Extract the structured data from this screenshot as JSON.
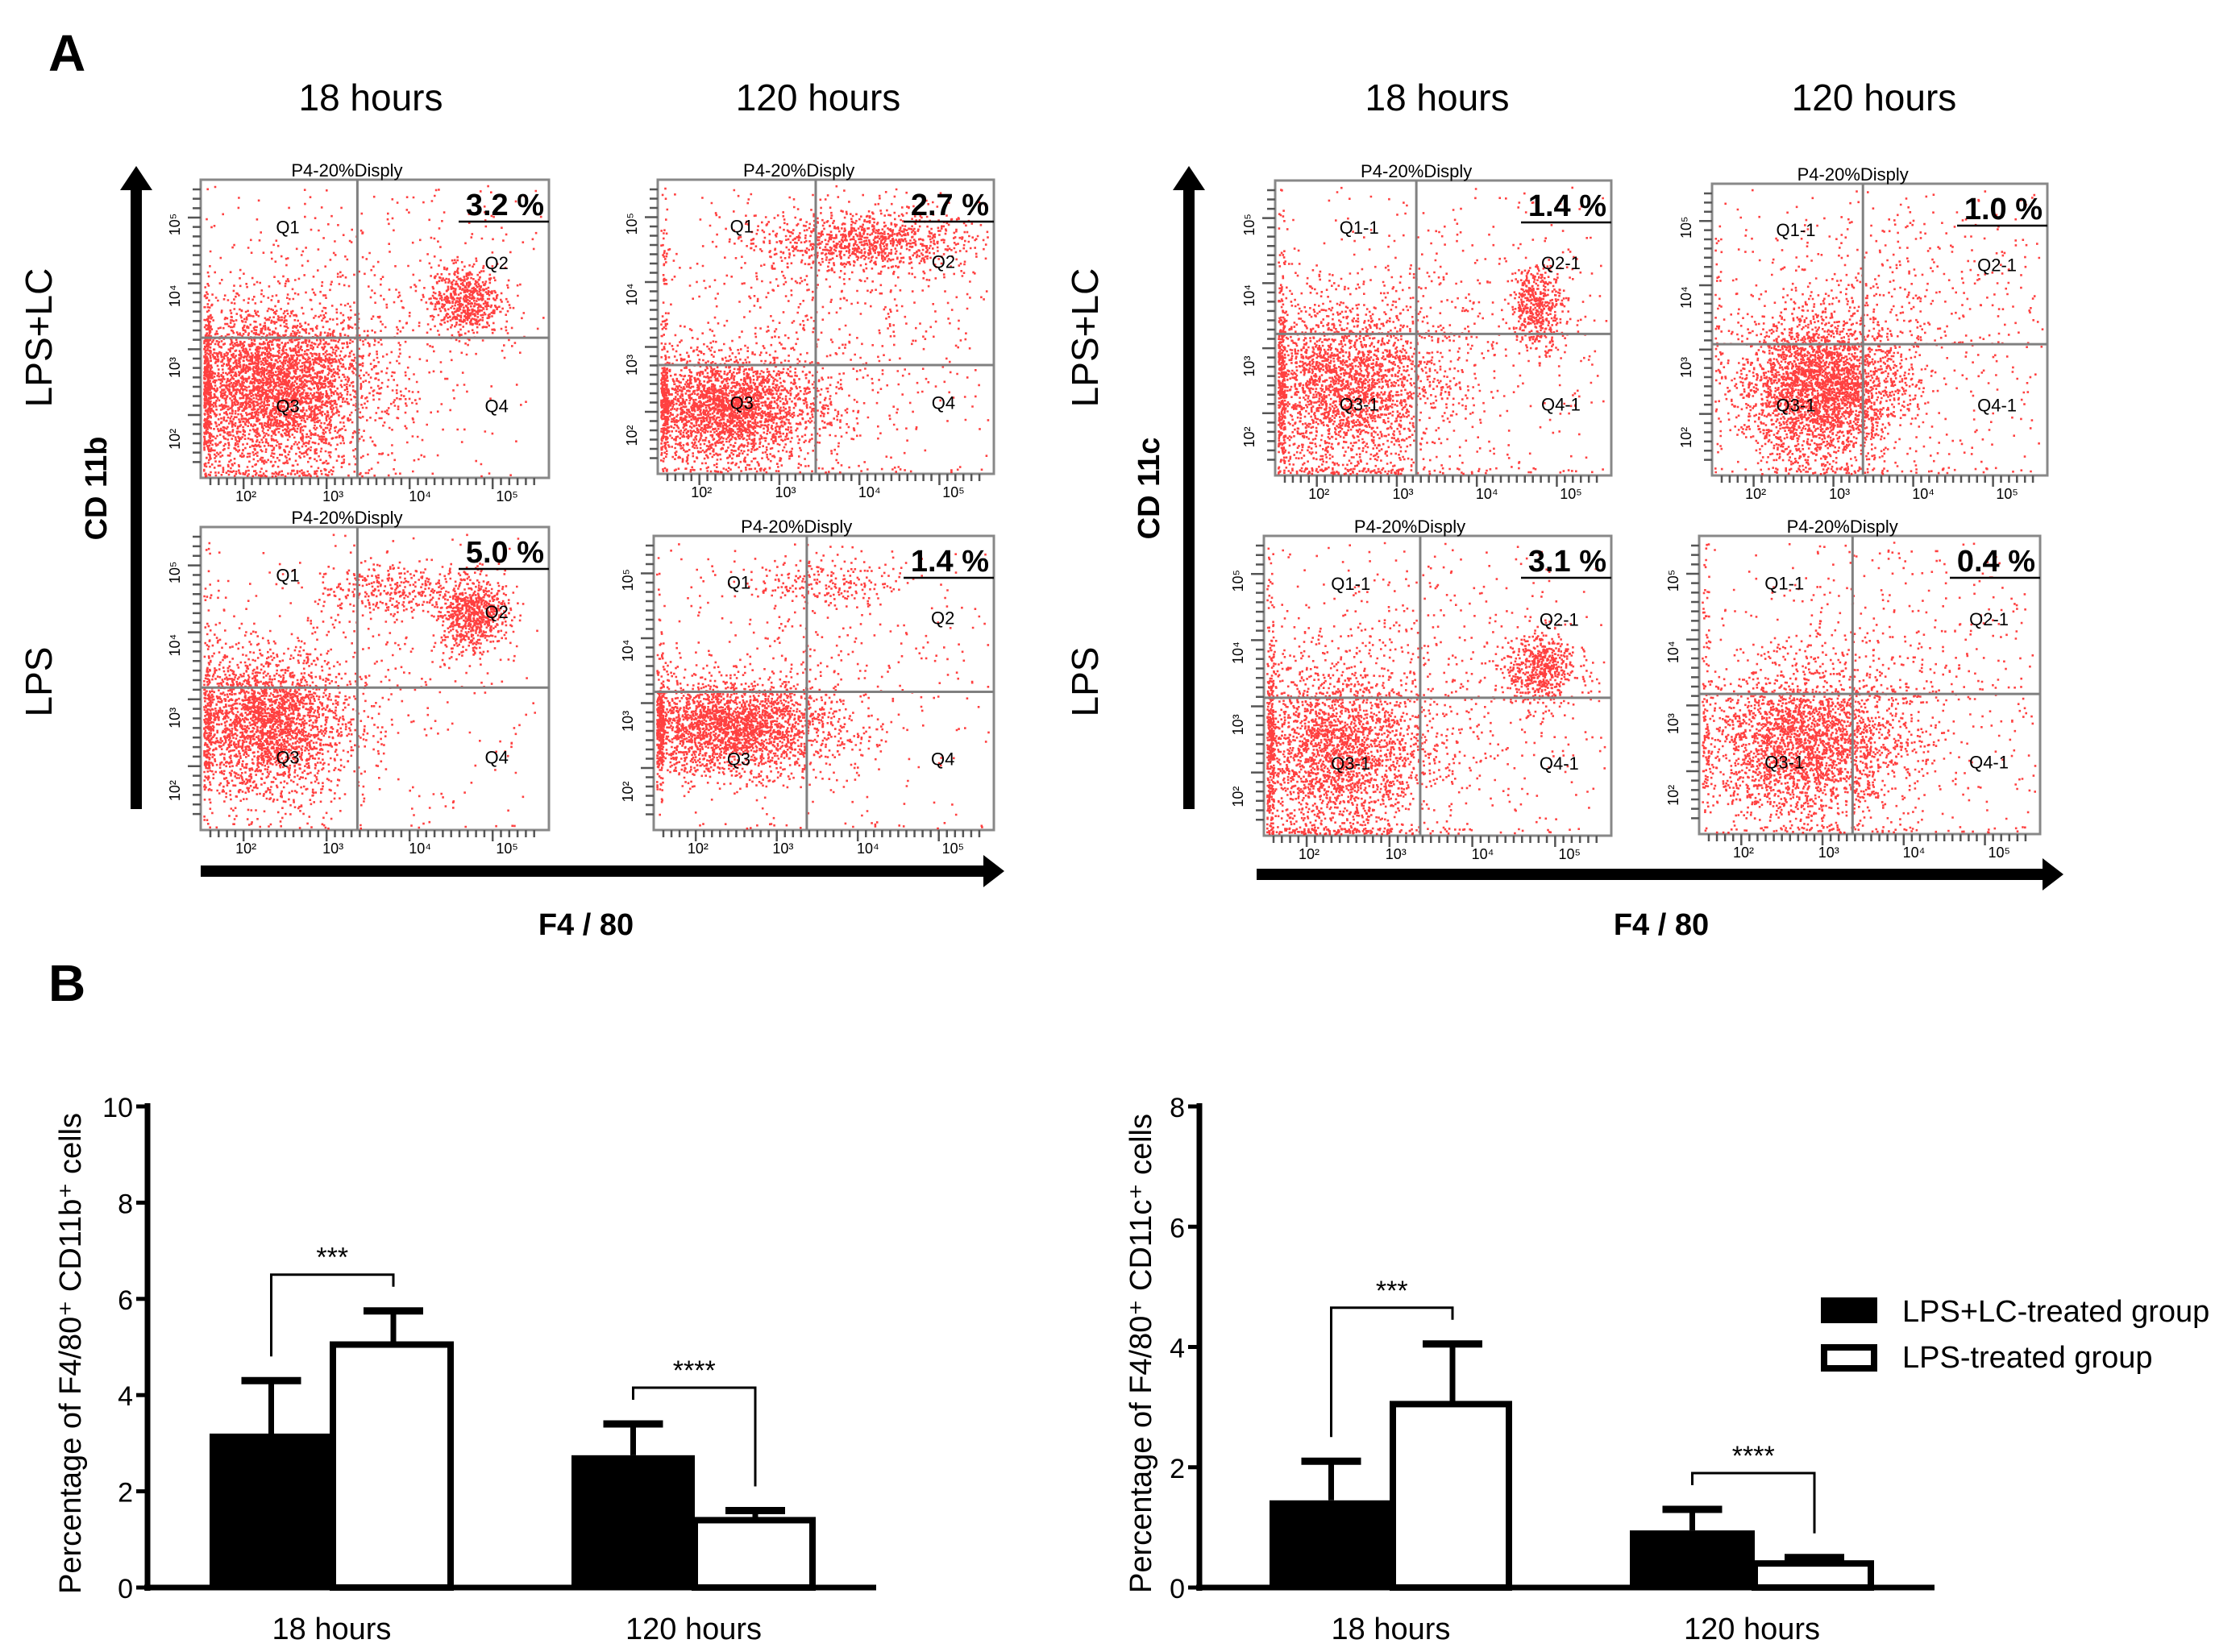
{
  "panel_a": {
    "label": "A",
    "time_headers": [
      "18 hours",
      "120 hours",
      "18 hours",
      "120 hours"
    ],
    "row_labels": [
      "LPS+LC",
      "LPS",
      "LPS+LC",
      "LPS"
    ],
    "left_y_axis": "CD 11b",
    "right_y_axis": "CD 11c",
    "x_axis": [
      "F4 / 80",
      "F4 / 80"
    ],
    "plots": [
      {
        "title": "P4-20%Disply",
        "percent": "3.2 %",
        "quadrants": [
          "Q1",
          "Q2",
          "Q3",
          "Q4"
        ]
      },
      {
        "title": "P4-20%Disply",
        "percent": "2.7 %",
        "quadrants": [
          "Q1",
          "Q2",
          "Q3",
          "Q4"
        ]
      },
      {
        "title": "P4-20%Disply",
        "percent": "5.0 %",
        "quadrants": [
          "Q1",
          "Q2",
          "Q3",
          "Q4"
        ]
      },
      {
        "title": "P4-20%Disply",
        "percent": "1.4 %",
        "quadrants": [
          "Q1",
          "Q2",
          "Q3",
          "Q4"
        ]
      },
      {
        "title": "P4-20%Disply",
        "percent": "1.4 %",
        "quadrants": [
          "Q1-1",
          "Q2-1",
          "Q3-1",
          "Q4-1"
        ]
      },
      {
        "title": "P4-20%Disply",
        "percent": "1.0 %",
        "quadrants": [
          "Q1-1",
          "Q2-1",
          "Q3-1",
          "Q4-1"
        ]
      },
      {
        "title": "P4-20%Disply",
        "percent": "3.1 %",
        "quadrants": [
          "Q1-1",
          "Q2-1",
          "Q3-1",
          "Q4-1"
        ]
      },
      {
        "title": "P4-20%Disply",
        "percent": "0.4 %",
        "quadrants": [
          "Q1-1",
          "Q2-1",
          "Q3-1",
          "Q4-1"
        ]
      }
    ],
    "log_ticks": [
      "10²",
      "10³",
      "10⁴",
      "10⁵"
    ]
  },
  "panel_b": {
    "label": "B"
  },
  "chart_data": [
    {
      "type": "bar",
      "title": "",
      "ylabel": "Percentage of F4/80⁺ CD11b⁺ cells",
      "xlabel": "",
      "categories": [
        "18 hours",
        "120 hours"
      ],
      "ylim": [
        0,
        10
      ],
      "yticks": [
        "0",
        "2",
        "4",
        "6",
        "8",
        "10"
      ],
      "series": [
        {
          "name": "LPS+LC-treated group",
          "values": [
            3.2,
            2.75
          ],
          "errors": [
            1.1,
            0.65
          ]
        },
        {
          "name": "LPS-treated group",
          "values": [
            5.05,
            1.4
          ],
          "errors": [
            0.7,
            0.2
          ]
        }
      ],
      "significance": [
        "***",
        "****"
      ]
    },
    {
      "type": "bar",
      "title": "",
      "ylabel": "Percentage of F4/80⁺ CD11c⁺ cells",
      "xlabel": "",
      "categories": [
        "18 hours",
        "120 hours"
      ],
      "ylim": [
        0,
        8
      ],
      "yticks": [
        "0",
        "2",
        "4",
        "6",
        "8"
      ],
      "series": [
        {
          "name": "LPS+LC-treated group",
          "values": [
            1.45,
            0.95
          ],
          "errors": [
            0.65,
            0.35
          ]
        },
        {
          "name": "LPS-treated group",
          "values": [
            3.05,
            0.4
          ],
          "errors": [
            1.0,
            0.1
          ]
        }
      ],
      "significance": [
        "***",
        "****"
      ],
      "legend": {
        "position": "right",
        "entries": [
          "LPS+LC-treated group",
          "LPS-treated group"
        ]
      }
    }
  ],
  "colors": {
    "dots": "#ff0000",
    "gate": "#808080",
    "bar_fill_1": "#000000",
    "bar_fill_2": "#ffffff"
  }
}
